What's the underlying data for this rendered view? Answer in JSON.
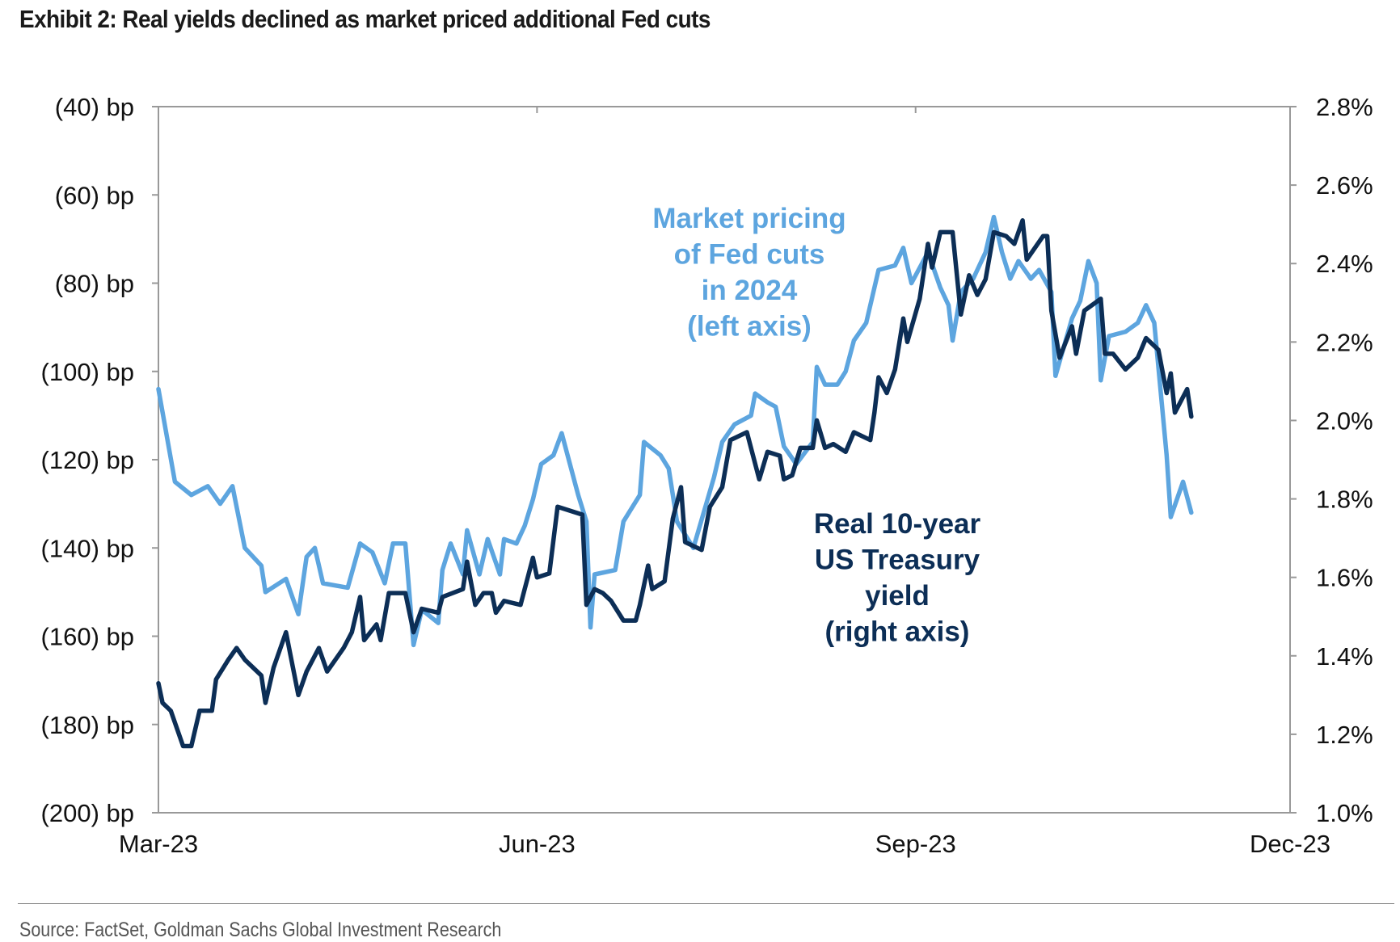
{
  "title": "Exhibit 2: Real yields declined as market priced additional Fed cuts",
  "source": "Source: FactSet, Goldman Sachs Global Investment Research",
  "chart_data": {
    "type": "line",
    "title": "Exhibit 2: Real yields declined as market priced additional Fed cuts",
    "x_axis": {
      "type": "date",
      "range": [
        "2023-03-01",
        "2023-12-01"
      ],
      "ticks": [
        "2023-03-01",
        "2023-06-01",
        "2023-09-01",
        "2023-12-01"
      ],
      "tick_labels": [
        "Mar-23",
        "Jun-23",
        "Sep-23",
        "Dec-23"
      ]
    },
    "y_left": {
      "range": [
        -200,
        -40
      ],
      "unit": "bp",
      "ticks": [
        -40,
        -60,
        -80,
        -100,
        -120,
        -140,
        -160,
        -180,
        -200
      ],
      "tick_labels": [
        "(40) bp",
        "(60) bp",
        "(80) bp",
        "(100) bp",
        "(120) bp",
        "(140) bp",
        "(160) bp",
        "(180) bp",
        "(200) bp"
      ]
    },
    "y_right": {
      "range": [
        1.0,
        2.8
      ],
      "unit": "%",
      "ticks": [
        2.8,
        2.6,
        2.4,
        2.2,
        2.0,
        1.8,
        1.6,
        1.4,
        1.2,
        1.0
      ],
      "tick_labels": [
        "2.8%",
        "2.6%",
        "2.4%",
        "2.2%",
        "2.0%",
        "1.8%",
        "1.6%",
        "1.4%",
        "1.2%",
        "1.0%"
      ]
    },
    "grid": false,
    "legend": "none",
    "series": [
      {
        "label_lines": [
          "Market pricing",
          "of Fed cuts",
          "in 2024",
          "(left axis)"
        ],
        "axis": "left",
        "color": "#5DA5DF",
        "points": [
          [
            "2023-03-01",
            -104
          ],
          [
            "2023-03-05",
            -125
          ],
          [
            "2023-03-09",
            -128
          ],
          [
            "2023-03-13",
            -126
          ],
          [
            "2023-03-16",
            -130
          ],
          [
            "2023-03-19",
            -126
          ],
          [
            "2023-03-22",
            -140
          ],
          [
            "2023-03-26",
            -144
          ],
          [
            "2023-03-27",
            -150
          ],
          [
            "2023-04-01",
            -147
          ],
          [
            "2023-04-04",
            -155
          ],
          [
            "2023-04-06",
            -142
          ],
          [
            "2023-04-08",
            -140
          ],
          [
            "2023-04-10",
            -148
          ],
          [
            "2023-04-16",
            -149
          ],
          [
            "2023-04-19",
            -139
          ],
          [
            "2023-04-22",
            -141
          ],
          [
            "2023-04-25",
            -148
          ],
          [
            "2023-04-27",
            -139
          ],
          [
            "2023-04-30",
            -139
          ],
          [
            "2023-05-02",
            -162
          ],
          [
            "2023-05-04",
            -154
          ],
          [
            "2023-05-08",
            -157
          ],
          [
            "2023-05-09",
            -145
          ],
          [
            "2023-05-11",
            -139
          ],
          [
            "2023-05-14",
            -146
          ],
          [
            "2023-05-15",
            -136
          ],
          [
            "2023-05-18",
            -146
          ],
          [
            "2023-05-20",
            -138
          ],
          [
            "2023-05-23",
            -146
          ],
          [
            "2023-05-24",
            -138
          ],
          [
            "2023-05-27",
            -139
          ],
          [
            "2023-05-29",
            -135
          ],
          [
            "2023-05-31",
            -129
          ],
          [
            "2023-06-02",
            -121
          ],
          [
            "2023-06-05",
            -119
          ],
          [
            "2023-06-07",
            -114
          ],
          [
            "2023-06-09",
            -121
          ],
          [
            "2023-06-11",
            -128
          ],
          [
            "2023-06-13",
            -134
          ],
          [
            "2023-06-14",
            -158
          ],
          [
            "2023-06-15",
            -146
          ],
          [
            "2023-06-20",
            -145
          ],
          [
            "2023-06-22",
            -134
          ],
          [
            "2023-06-26",
            -128
          ],
          [
            "2023-06-27",
            -116
          ],
          [
            "2023-07-01",
            -119
          ],
          [
            "2023-07-03",
            -122
          ],
          [
            "2023-07-05",
            -134
          ],
          [
            "2023-07-09",
            -140
          ],
          [
            "2023-07-14",
            -124
          ],
          [
            "2023-07-16",
            -116
          ],
          [
            "2023-07-19",
            -112
          ],
          [
            "2023-07-23",
            -110
          ],
          [
            "2023-07-24",
            -105
          ],
          [
            "2023-07-27",
            -107
          ],
          [
            "2023-07-29",
            -108
          ],
          [
            "2023-07-31",
            -117
          ],
          [
            "2023-08-03",
            -121
          ],
          [
            "2023-08-07",
            -116
          ],
          [
            "2023-08-08",
            -99
          ],
          [
            "2023-08-10",
            -103
          ],
          [
            "2023-08-13",
            -103
          ],
          [
            "2023-08-15",
            -100
          ],
          [
            "2023-08-17",
            -93
          ],
          [
            "2023-08-20",
            -89
          ],
          [
            "2023-08-22",
            -81
          ],
          [
            "2023-08-23",
            -77
          ],
          [
            "2023-08-27",
            -76
          ],
          [
            "2023-08-29",
            -72
          ],
          [
            "2023-08-31",
            -80
          ],
          [
            "2023-09-04",
            -73
          ],
          [
            "2023-09-07",
            -81
          ],
          [
            "2023-09-09",
            -85
          ],
          [
            "2023-09-10",
            -93
          ],
          [
            "2023-09-12",
            -82
          ],
          [
            "2023-09-15",
            -79
          ],
          [
            "2023-09-18",
            -73
          ],
          [
            "2023-09-20",
            -65
          ],
          [
            "2023-09-22",
            -73
          ],
          [
            "2023-09-24",
            -79
          ],
          [
            "2023-09-26",
            -75
          ],
          [
            "2023-09-29",
            -79
          ],
          [
            "2023-10-01",
            -77
          ],
          [
            "2023-10-04",
            -82
          ],
          [
            "2023-10-05",
            -101
          ],
          [
            "2023-10-09",
            -88
          ],
          [
            "2023-10-11",
            -84
          ],
          [
            "2023-10-13",
            -75
          ],
          [
            "2023-10-15",
            -80
          ],
          [
            "2023-10-16",
            -102
          ],
          [
            "2023-10-18",
            -92
          ],
          [
            "2023-10-22",
            -91
          ],
          [
            "2023-10-25",
            -89
          ],
          [
            "2023-10-27",
            -85
          ],
          [
            "2023-10-29",
            -89
          ],
          [
            "2023-11-01",
            -119
          ],
          [
            "2023-11-02",
            -133
          ],
          [
            "2023-11-05",
            -125
          ],
          [
            "2023-11-07",
            -132
          ]
        ]
      },
      {
        "label_lines": [
          "Real 10-year",
          "US Treasury",
          "yield",
          "(right axis)"
        ],
        "axis": "right",
        "color": "#0C2E56",
        "points": [
          [
            "2023-03-01",
            1.33
          ],
          [
            "2023-03-02",
            1.28
          ],
          [
            "2023-03-04",
            1.26
          ],
          [
            "2023-03-07",
            1.17
          ],
          [
            "2023-03-09",
            1.17
          ],
          [
            "2023-03-11",
            1.26
          ],
          [
            "2023-03-14",
            1.26
          ],
          [
            "2023-03-15",
            1.34
          ],
          [
            "2023-03-18",
            1.39
          ],
          [
            "2023-03-20",
            1.42
          ],
          [
            "2023-03-22",
            1.39
          ],
          [
            "2023-03-26",
            1.35
          ],
          [
            "2023-03-27",
            1.28
          ],
          [
            "2023-03-29",
            1.37
          ],
          [
            "2023-04-01",
            1.46
          ],
          [
            "2023-04-04",
            1.3
          ],
          [
            "2023-04-06",
            1.36
          ],
          [
            "2023-04-09",
            1.42
          ],
          [
            "2023-04-11",
            1.36
          ],
          [
            "2023-04-15",
            1.42
          ],
          [
            "2023-04-17",
            1.46
          ],
          [
            "2023-04-19",
            1.55
          ],
          [
            "2023-04-20",
            1.44
          ],
          [
            "2023-04-23",
            1.48
          ],
          [
            "2023-04-24",
            1.44
          ],
          [
            "2023-04-26",
            1.56
          ],
          [
            "2023-04-30",
            1.56
          ],
          [
            "2023-05-02",
            1.46
          ],
          [
            "2023-05-04",
            1.52
          ],
          [
            "2023-05-08",
            1.51
          ],
          [
            "2023-05-09",
            1.55
          ],
          [
            "2023-05-14",
            1.57
          ],
          [
            "2023-05-15",
            1.64
          ],
          [
            "2023-05-17",
            1.53
          ],
          [
            "2023-05-19",
            1.56
          ],
          [
            "2023-05-21",
            1.56
          ],
          [
            "2023-05-22",
            1.51
          ],
          [
            "2023-05-24",
            1.54
          ],
          [
            "2023-05-28",
            1.53
          ],
          [
            "2023-05-29",
            1.57
          ],
          [
            "2023-05-31",
            1.65
          ],
          [
            "2023-06-01",
            1.6
          ],
          [
            "2023-06-04",
            1.61
          ],
          [
            "2023-06-06",
            1.78
          ],
          [
            "2023-06-12",
            1.76
          ],
          [
            "2023-06-13",
            1.53
          ],
          [
            "2023-06-15",
            1.57
          ],
          [
            "2023-06-17",
            1.56
          ],
          [
            "2023-06-19",
            1.54
          ],
          [
            "2023-06-22",
            1.49
          ],
          [
            "2023-06-25",
            1.49
          ],
          [
            "2023-06-26",
            1.53
          ],
          [
            "2023-06-28",
            1.63
          ],
          [
            "2023-06-29",
            1.57
          ],
          [
            "2023-07-02",
            1.59
          ],
          [
            "2023-07-04",
            1.75
          ],
          [
            "2023-07-06",
            1.83
          ],
          [
            "2023-07-07",
            1.69
          ],
          [
            "2023-07-11",
            1.67
          ],
          [
            "2023-07-13",
            1.78
          ],
          [
            "2023-07-16",
            1.83
          ],
          [
            "2023-07-18",
            1.95
          ],
          [
            "2023-07-20",
            1.96
          ],
          [
            "2023-07-22",
            1.97
          ],
          [
            "2023-07-25",
            1.85
          ],
          [
            "2023-07-27",
            1.92
          ],
          [
            "2023-07-30",
            1.91
          ],
          [
            "2023-07-31",
            1.85
          ],
          [
            "2023-08-02",
            1.86
          ],
          [
            "2023-08-04",
            1.93
          ],
          [
            "2023-08-07",
            1.93
          ],
          [
            "2023-08-08",
            2.0
          ],
          [
            "2023-08-10",
            1.93
          ],
          [
            "2023-08-12",
            1.94
          ],
          [
            "2023-08-15",
            1.92
          ],
          [
            "2023-08-17",
            1.97
          ],
          [
            "2023-08-21",
            1.95
          ],
          [
            "2023-08-22",
            2.02
          ],
          [
            "2023-08-23",
            2.11
          ],
          [
            "2023-08-25",
            2.07
          ],
          [
            "2023-08-27",
            2.13
          ],
          [
            "2023-08-29",
            2.26
          ],
          [
            "2023-08-30",
            2.2
          ],
          [
            "2023-09-02",
            2.31
          ],
          [
            "2023-09-04",
            2.45
          ],
          [
            "2023-09-05",
            2.39
          ],
          [
            "2023-09-07",
            2.48
          ],
          [
            "2023-09-10",
            2.48
          ],
          [
            "2023-09-12",
            2.27
          ],
          [
            "2023-09-14",
            2.37
          ],
          [
            "2023-09-16",
            2.32
          ],
          [
            "2023-09-18",
            2.36
          ],
          [
            "2023-09-20",
            2.48
          ],
          [
            "2023-09-23",
            2.47
          ],
          [
            "2023-09-25",
            2.45
          ],
          [
            "2023-09-27",
            2.51
          ],
          [
            "2023-09-28",
            2.41
          ],
          [
            "2023-10-02",
            2.47
          ],
          [
            "2023-10-03",
            2.47
          ],
          [
            "2023-10-04",
            2.28
          ],
          [
            "2023-10-06",
            2.16
          ],
          [
            "2023-10-09",
            2.24
          ],
          [
            "2023-10-10",
            2.17
          ],
          [
            "2023-10-12",
            2.28
          ],
          [
            "2023-10-16",
            2.31
          ],
          [
            "2023-10-17",
            2.17
          ],
          [
            "2023-10-19",
            2.17
          ],
          [
            "2023-10-22",
            2.13
          ],
          [
            "2023-10-25",
            2.16
          ],
          [
            "2023-10-27",
            2.21
          ],
          [
            "2023-10-30",
            2.18
          ],
          [
            "2023-11-01",
            2.07
          ],
          [
            "2023-11-02",
            2.12
          ],
          [
            "2023-11-03",
            2.02
          ],
          [
            "2023-11-06",
            2.08
          ],
          [
            "2023-11-07",
            2.01
          ]
        ]
      }
    ]
  }
}
